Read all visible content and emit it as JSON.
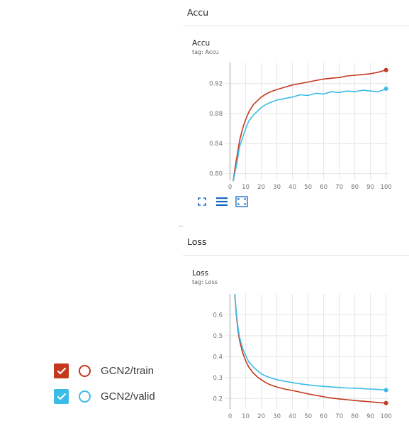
{
  "sections": {
    "accu": {
      "header": "Accu",
      "card_title": "Accu",
      "card_tag": "tag: Accu"
    },
    "loss": {
      "header": "Loss",
      "card_title": "Loss",
      "card_tag": "tag: Loss"
    }
  },
  "toolbar": {
    "icons": [
      "fit-to-data-icon",
      "toggle-log-scale-icon",
      "expand-chart-icon"
    ]
  },
  "legend": {
    "runs": [
      {
        "label": "GCN2/train",
        "color": "#c3381e",
        "checked": true
      },
      {
        "label": "GCN2/valid",
        "color": "#3bbbe8",
        "checked": true
      }
    ]
  },
  "chart_data": [
    {
      "type": "line",
      "title": "Accu",
      "subtitle": "tag: Accu",
      "x": [
        2,
        3,
        4,
        5,
        6,
        8,
        10,
        12,
        15,
        18,
        20,
        23,
        26,
        30,
        35,
        40,
        45,
        50,
        55,
        60,
        65,
        70,
        75,
        80,
        85,
        90,
        95,
        100
      ],
      "xticks": [
        0,
        10,
        20,
        30,
        40,
        50,
        60,
        70,
        80,
        90,
        100
      ],
      "yticks": [
        0.8,
        0.84,
        0.88,
        0.92
      ],
      "xlim": [
        -3,
        102
      ],
      "ylim": [
        0.792,
        0.948
      ],
      "grid": true,
      "series": [
        {
          "name": "GCN2/train",
          "color": "#c3381e",
          "values": [
            0.79,
            0.805,
            0.818,
            0.83,
            0.843,
            0.86,
            0.872,
            0.882,
            0.892,
            0.898,
            0.902,
            0.906,
            0.909,
            0.912,
            0.915,
            0.918,
            0.92,
            0.922,
            0.924,
            0.926,
            0.927,
            0.928,
            0.93,
            0.931,
            0.932,
            0.933,
            0.935,
            0.938
          ]
        },
        {
          "name": "GCN2/valid",
          "color": "#3bbbe8",
          "values": [
            0.79,
            0.8,
            0.81,
            0.822,
            0.835,
            0.848,
            0.86,
            0.87,
            0.878,
            0.884,
            0.888,
            0.892,
            0.895,
            0.898,
            0.9,
            0.902,
            0.905,
            0.904,
            0.907,
            0.906,
            0.909,
            0.908,
            0.91,
            0.909,
            0.911,
            0.91,
            0.909,
            0.913
          ]
        }
      ]
    },
    {
      "type": "line",
      "title": "Loss",
      "subtitle": "tag: Loss",
      "x": [
        3,
        4,
        5,
        6,
        8,
        10,
        12,
        15,
        18,
        20,
        23,
        26,
        30,
        35,
        40,
        45,
        50,
        55,
        60,
        65,
        70,
        75,
        80,
        85,
        90,
        95,
        100
      ],
      "xticks": [
        0,
        10,
        20,
        30,
        40,
        50,
        60,
        70,
        80,
        90,
        100
      ],
      "yticks": [
        0.2,
        0.3,
        0.4,
        0.5,
        0.6
      ],
      "xlim": [
        -3,
        102
      ],
      "ylim": [
        0.15,
        0.7
      ],
      "grid": true,
      "series": [
        {
          "name": "GCN2/train",
          "color": "#c3381e",
          "values": [
            0.7,
            0.6,
            0.53,
            0.48,
            0.42,
            0.38,
            0.35,
            0.32,
            0.3,
            0.29,
            0.275,
            0.265,
            0.255,
            0.245,
            0.238,
            0.23,
            0.222,
            0.215,
            0.208,
            0.202,
            0.198,
            0.194,
            0.19,
            0.187,
            0.184,
            0.181,
            0.178
          ]
        },
        {
          "name": "GCN2/valid",
          "color": "#3bbbe8",
          "values": [
            0.7,
            0.61,
            0.545,
            0.495,
            0.44,
            0.405,
            0.375,
            0.35,
            0.33,
            0.318,
            0.307,
            0.298,
            0.29,
            0.282,
            0.276,
            0.27,
            0.265,
            0.261,
            0.258,
            0.255,
            0.253,
            0.25,
            0.249,
            0.247,
            0.245,
            0.243,
            0.24
          ]
        }
      ]
    }
  ]
}
